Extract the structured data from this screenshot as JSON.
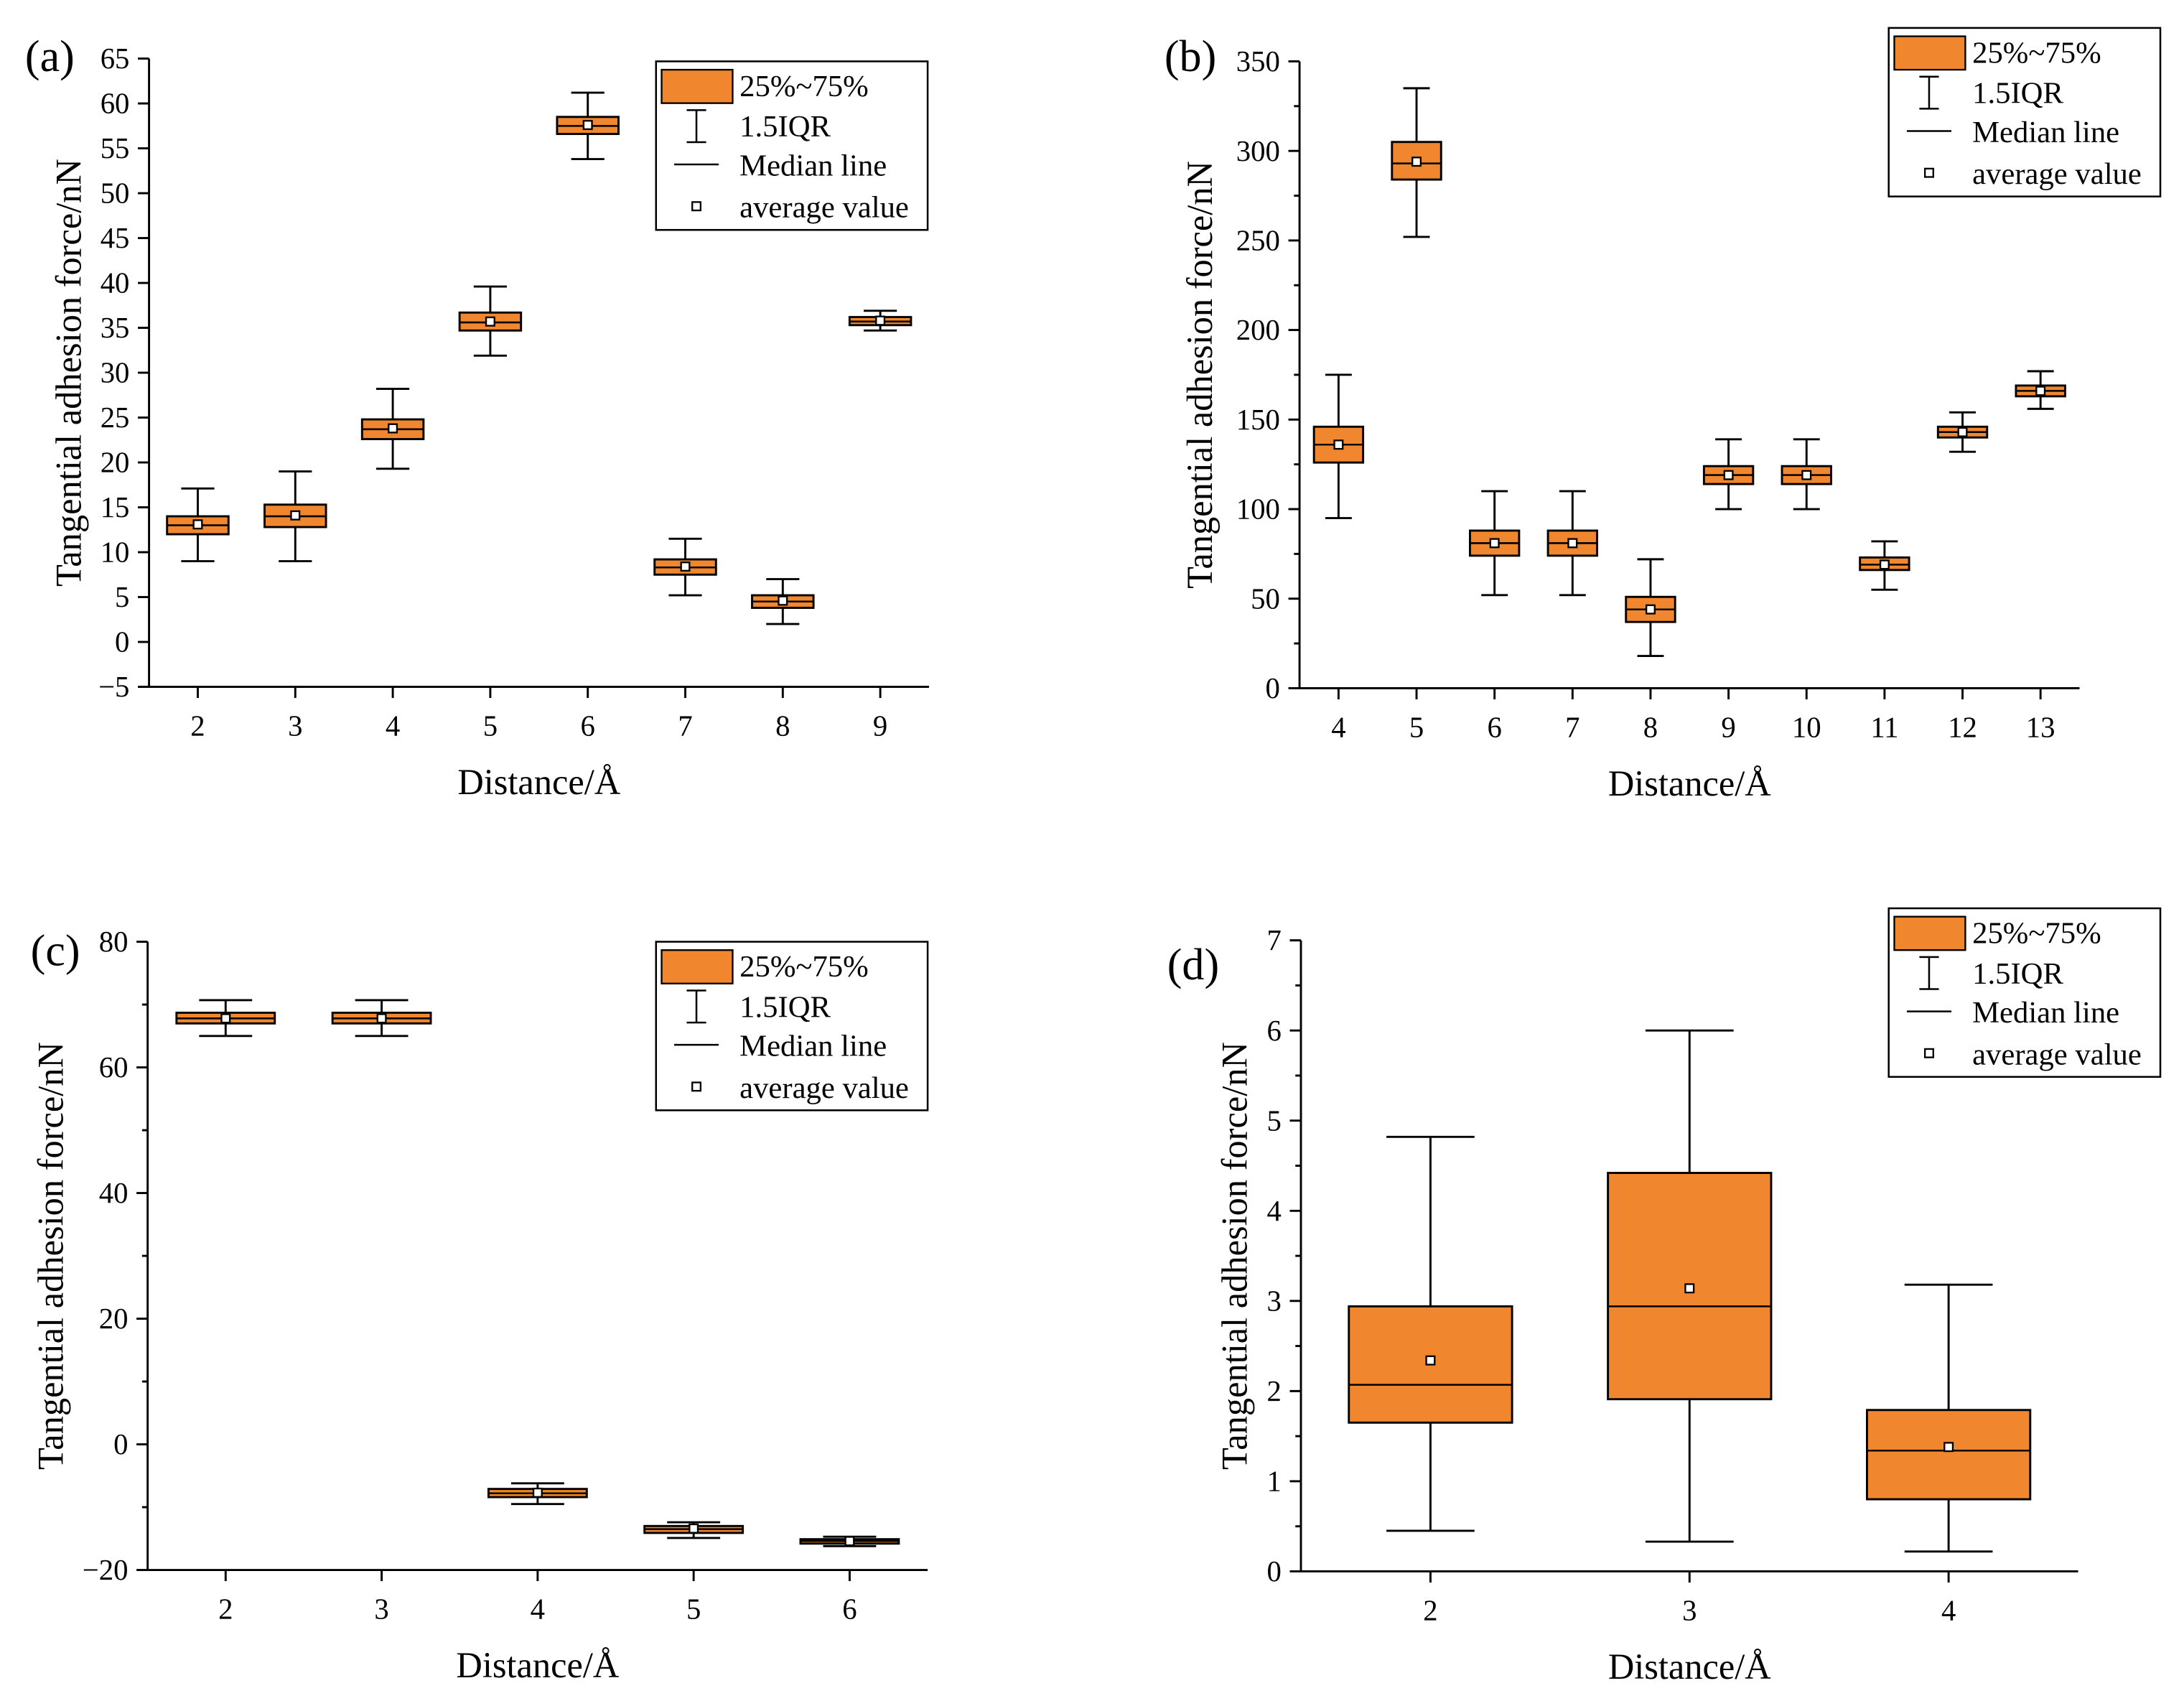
{
  "colors": {
    "box_fill": "#F0862D",
    "ink": "#000000",
    "mean_marker_fill": "#FFFFFF",
    "background": "#FFFFFF"
  },
  "chart_data": [
    {
      "label": "(a)",
      "type": "box",
      "xlabel": "Distance/Å",
      "ylabel": "Tangential adhesion force/nN",
      "categories": [
        "2",
        "3",
        "4",
        "5",
        "6",
        "7",
        "8",
        "9"
      ],
      "ylim": [
        -5,
        65
      ],
      "yticks": [
        -5,
        0,
        5,
        10,
        15,
        20,
        25,
        30,
        35,
        40,
        45,
        50,
        55,
        60,
        65
      ],
      "ytick_labels": [
        "−5",
        "0",
        "5",
        "10",
        "15",
        "20",
        "25",
        "30",
        "35",
        "40",
        "45",
        "50",
        "55",
        "60",
        "65"
      ],
      "legend": {
        "box": "25%~75%",
        "whisker": "1.5IQR",
        "median": "Median line",
        "mean": "average value",
        "position": "top-right"
      },
      "boxes": [
        {
          "whisker_low": 9.0,
          "q1": 12.0,
          "median": 13.0,
          "q3": 14.0,
          "whisker_high": 17.1,
          "mean": 13.1
        },
        {
          "whisker_low": 9.0,
          "q1": 12.8,
          "median": 14.0,
          "q3": 15.3,
          "whisker_high": 19.0,
          "mean": 14.1
        },
        {
          "whisker_low": 19.3,
          "q1": 22.6,
          "median": 23.7,
          "q3": 24.8,
          "whisker_high": 28.2,
          "mean": 23.8
        },
        {
          "whisker_low": 31.9,
          "q1": 34.7,
          "median": 35.6,
          "q3": 36.7,
          "whisker_high": 39.6,
          "mean": 35.7
        },
        {
          "whisker_low": 53.8,
          "q1": 56.6,
          "median": 57.5,
          "q3": 58.5,
          "whisker_high": 61.2,
          "mean": 57.6
        },
        {
          "whisker_low": 5.2,
          "q1": 7.5,
          "median": 8.3,
          "q3": 9.2,
          "whisker_high": 11.5,
          "mean": 8.4
        },
        {
          "whisker_low": 2.0,
          "q1": 3.8,
          "median": 4.5,
          "q3": 5.2,
          "whisker_high": 7.0,
          "mean": 4.6
        },
        {
          "whisker_low": 34.7,
          "q1": 35.3,
          "median": 35.7,
          "q3": 36.2,
          "whisker_high": 36.9,
          "mean": 35.8
        }
      ]
    },
    {
      "label": "(b)",
      "type": "box",
      "xlabel": "Distance/Å",
      "ylabel": "Tangential adhesion force/nN",
      "categories": [
        "4",
        "5",
        "6",
        "7",
        "8",
        "9",
        "10",
        "11",
        "12",
        "13"
      ],
      "ylim": [
        0,
        350
      ],
      "yticks": [
        0,
        50,
        100,
        150,
        200,
        250,
        300,
        350
      ],
      "ytick_labels": [
        "0",
        "50",
        "100",
        "150",
        "200",
        "250",
        "300",
        "350"
      ],
      "legend": {
        "box": "25%~75%",
        "whisker": "1.5IQR",
        "median": "Median line",
        "mean": "average value",
        "position": "top-right"
      },
      "boxes": [
        {
          "whisker_low": 95,
          "q1": 126,
          "median": 136,
          "q3": 146,
          "whisker_high": 175,
          "mean": 136
        },
        {
          "whisker_low": 252,
          "q1": 284,
          "median": 293,
          "q3": 305,
          "whisker_high": 335,
          "mean": 294
        },
        {
          "whisker_low": 52,
          "q1": 74,
          "median": 81,
          "q3": 88,
          "whisker_high": 110,
          "mean": 81
        },
        {
          "whisker_low": 52,
          "q1": 74,
          "median": 81,
          "q3": 88,
          "whisker_high": 110,
          "mean": 81
        },
        {
          "whisker_low": 18,
          "q1": 37,
          "median": 44,
          "q3": 51,
          "whisker_high": 72,
          "mean": 44
        },
        {
          "whisker_low": 100,
          "q1": 114,
          "median": 119,
          "q3": 124,
          "whisker_high": 139,
          "mean": 119
        },
        {
          "whisker_low": 100,
          "q1": 114,
          "median": 119,
          "q3": 124,
          "whisker_high": 139,
          "mean": 119
        },
        {
          "whisker_low": 55,
          "q1": 66,
          "median": 69,
          "q3": 73,
          "whisker_high": 82,
          "mean": 69
        },
        {
          "whisker_low": 132,
          "q1": 140,
          "median": 143,
          "q3": 146,
          "whisker_high": 154,
          "mean": 143
        },
        {
          "whisker_low": 156,
          "q1": 163,
          "median": 166,
          "q3": 169,
          "whisker_high": 177,
          "mean": 166
        }
      ]
    },
    {
      "label": "(c)",
      "type": "box",
      "xlabel": "Distance/Å",
      "ylabel": "Tangential adhesion force/nN",
      "categories": [
        "2",
        "3",
        "4",
        "5",
        "6"
      ],
      "ylim": [
        -20,
        80
      ],
      "yticks": [
        -20,
        0,
        20,
        40,
        60,
        80
      ],
      "ytick_labels": [
        "−20",
        "0",
        "20",
        "40",
        "60",
        "80"
      ],
      "legend": {
        "box": "25%~75%",
        "whisker": "1.5IQR",
        "median": "Median line",
        "mean": "average value",
        "position": "top-right"
      },
      "boxes": [
        {
          "whisker_low": 65.0,
          "q1": 67.0,
          "median": 67.8,
          "q3": 68.7,
          "whisker_high": 70.7,
          "mean": 67.8
        },
        {
          "whisker_low": 65.0,
          "q1": 67.0,
          "median": 67.8,
          "q3": 68.7,
          "whisker_high": 70.7,
          "mean": 67.8
        },
        {
          "whisker_low": -9.5,
          "q1": -8.4,
          "median": -7.8,
          "q3": -7.1,
          "whisker_high": -6.2,
          "mean": -7.7
        },
        {
          "whisker_low": -14.9,
          "q1": -14.1,
          "median": -13.5,
          "q3": -13.0,
          "whisker_high": -12.4,
          "mean": -13.4
        },
        {
          "whisker_low": -16.2,
          "q1": -15.8,
          "median": -15.4,
          "q3": -15.1,
          "whisker_high": -14.7,
          "mean": -15.4
        }
      ]
    },
    {
      "label": "(d)",
      "type": "box",
      "xlabel": "Distance/Å",
      "ylabel": "Tangential adhesion force/nN",
      "categories": [
        "2",
        "3",
        "4"
      ],
      "ylim": [
        0,
        7
      ],
      "yticks": [
        0,
        1,
        2,
        3,
        4,
        5,
        6,
        7
      ],
      "ytick_labels": [
        "0",
        "1",
        "2",
        "3",
        "4",
        "5",
        "6",
        "7"
      ],
      "legend": {
        "box": "25%~75%",
        "whisker": "1.5IQR",
        "median": "Median line",
        "mean": "average value",
        "position": "top-right"
      },
      "boxes": [
        {
          "whisker_low": 0.45,
          "q1": 1.65,
          "median": 2.07,
          "q3": 2.94,
          "whisker_high": 4.82,
          "mean": 2.34
        },
        {
          "whisker_low": 0.33,
          "q1": 1.91,
          "median": 2.94,
          "q3": 4.42,
          "whisker_high": 6.0,
          "mean": 3.14
        },
        {
          "whisker_low": 0.22,
          "q1": 0.8,
          "median": 1.34,
          "q3": 1.79,
          "whisker_high": 3.18,
          "mean": 1.38
        }
      ]
    }
  ]
}
